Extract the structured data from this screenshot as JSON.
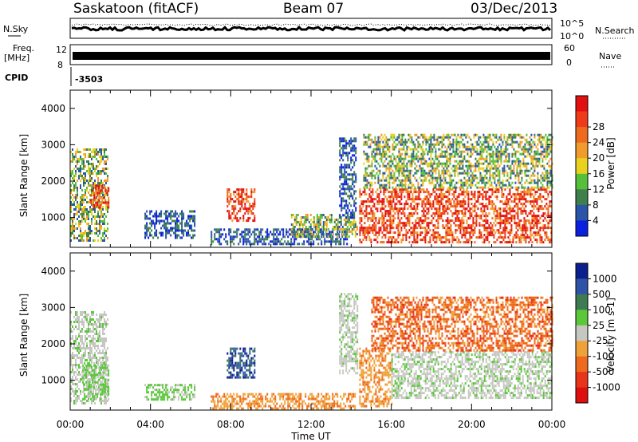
{
  "header": {
    "station": "Saskatoon (fitACF)",
    "beam": "Beam 07",
    "date": "03/Dec/2013"
  },
  "aux_panels": {
    "nsky_label": "N.Sky",
    "nsearch_label": "N.Search",
    "noise_ticks": [
      "10^5",
      "10^0"
    ],
    "freq_label_top": "Freq.",
    "freq_label_unit": "[MHz]",
    "freq_ticks": [
      "12",
      "8"
    ],
    "nave_label": "Nave",
    "nave_ticks": [
      "60",
      "0"
    ],
    "cpid_label": "CPID",
    "cpid_value": "-3503"
  },
  "time_ticks": [
    "00:00",
    "04:00",
    "08:00",
    "12:00",
    "16:00",
    "20:00",
    "00:00"
  ],
  "x_label": "Time UT",
  "chart_data": [
    {
      "type": "heatmap",
      "panel": "power",
      "ylabel": "Slant Range [km]",
      "ylim": [
        180,
        4500
      ],
      "yticks": [
        1000,
        2000,
        3000,
        4000
      ],
      "xlim_hours": [
        0,
        24
      ],
      "colorbar": {
        "label": "Power [dB]",
        "tick_labels": [
          "4",
          "8",
          "12",
          "16",
          "20",
          "24",
          "28"
        ],
        "colors": [
          "#0a1fe0",
          "#2a55a8",
          "#3f7f4c",
          "#56c03a",
          "#e8d21e",
          "#f09b2c",
          "#ee6a1f",
          "#ef3b1a",
          "#e21010"
        ]
      },
      "regions": [
        {
          "t": [
            0.0,
            1.9
          ],
          "r": [
            350,
            2900
          ],
          "level": "medium"
        },
        {
          "t": [
            1.0,
            1.9
          ],
          "r": [
            1300,
            1900
          ],
          "level": "high"
        },
        {
          "t": [
            3.7,
            6.2
          ],
          "r": [
            450,
            1200
          ],
          "level": "low"
        },
        {
          "t": [
            7.8,
            9.2
          ],
          "r": [
            900,
            1800
          ],
          "level": "high"
        },
        {
          "t": [
            7.0,
            13.8
          ],
          "r": [
            250,
            700
          ],
          "level": "low"
        },
        {
          "t": [
            11.0,
            14.3
          ],
          "r": [
            450,
            1100
          ],
          "level": "medium"
        },
        {
          "t": [
            13.4,
            14.2
          ],
          "r": [
            1000,
            3200
          ],
          "level": "low"
        },
        {
          "t": [
            14.4,
            24.0
          ],
          "r": [
            350,
            1800
          ],
          "level": "high"
        },
        {
          "t": [
            14.6,
            24.0
          ],
          "r": [
            1800,
            3300
          ],
          "level": "medium"
        }
      ]
    },
    {
      "type": "heatmap",
      "panel": "velocity",
      "ylabel": "Slant Range [km]",
      "ylim": [
        180,
        4500
      ],
      "yticks": [
        1000,
        2000,
        3000,
        4000
      ],
      "xlim_hours": [
        0,
        24
      ],
      "colorbar": {
        "label": "Velocity [m s-1]",
        "tick_labels": [
          "1000",
          "500",
          "100",
          "25",
          "-25",
          "-100",
          "-500",
          "-1000"
        ],
        "colors": [
          "#0b1f8e",
          "#2f54a7",
          "#3e7b53",
          "#5bc73b",
          "#c7c7c2",
          "#f0a23a",
          "#ee6a1f",
          "#e8351a",
          "#dd0f0f"
        ]
      },
      "regions": [
        {
          "t": [
            0.0,
            1.9
          ],
          "r": [
            350,
            2900
          ],
          "level": "grey"
        },
        {
          "t": [
            0.6,
            1.9
          ],
          "r": [
            450,
            1500
          ],
          "level": "green"
        },
        {
          "t": [
            3.7,
            6.2
          ],
          "r": [
            450,
            900
          ],
          "level": "green"
        },
        {
          "t": [
            7.8,
            9.2
          ],
          "r": [
            1100,
            1900
          ],
          "level": "blue"
        },
        {
          "t": [
            7.0,
            14.2
          ],
          "r": [
            250,
            650
          ],
          "level": "orange"
        },
        {
          "t": [
            13.4,
            14.3
          ],
          "r": [
            1200,
            3400
          ],
          "level": "grey"
        },
        {
          "t": [
            14.4,
            16.0
          ],
          "r": [
            300,
            1900
          ],
          "level": "orange"
        },
        {
          "t": [
            16.0,
            24.0
          ],
          "r": [
            500,
            1800
          ],
          "level": "grey"
        },
        {
          "t": [
            15.0,
            24.0
          ],
          "r": [
            1800,
            3300
          ],
          "level": "darkorange"
        }
      ]
    }
  ]
}
